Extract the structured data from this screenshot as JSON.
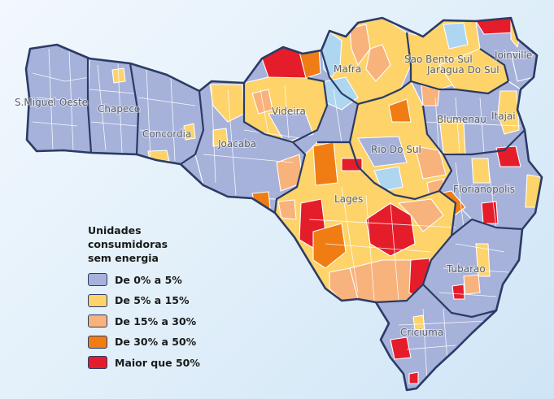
{
  "colors": {
    "c0": "#a6b2da",
    "c1": "#fdd36a",
    "c2": "#f8b27c",
    "c3": "#ef7d14",
    "c4": "#e51d2b",
    "water": "#aed6f1",
    "border": "#2b3b66"
  },
  "legend": {
    "title_lines": [
      "Unidades",
      "consumidoras",
      "sem energia"
    ],
    "items": [
      {
        "label": "De 0% a 5%",
        "color": "#a6b2da"
      },
      {
        "label": "De 5% a 15%",
        "color": "#fdd36a"
      },
      {
        "label": "De 15% a 30%",
        "color": "#f8b27c"
      },
      {
        "label": "De 30% a 50%",
        "color": "#ef7d14"
      },
      {
        "label": "Maior que 50%",
        "color": "#e51d2b"
      }
    ]
  },
  "cities": {
    "sao_miguel_oeste": "S.Miguel Oeste",
    "chapeco": "Chapeco",
    "concordia": "Concordia",
    "joacaba": "Joacaba",
    "videira": "Videira",
    "mafra": "Mafra",
    "sao_bento_sul": "Sao Bento Sul",
    "jaragua_do_sul": "Jaragua Do Sul",
    "joinville": "Joinville",
    "itajai": "Itajai",
    "blumenau": "Blumenau",
    "rio_do_sul": "Rio Do Sul",
    "lages": "Lages",
    "florianopolis": "Florianopolis",
    "tubarao": "Tubarao",
    "criciuma": "Criciuma"
  }
}
